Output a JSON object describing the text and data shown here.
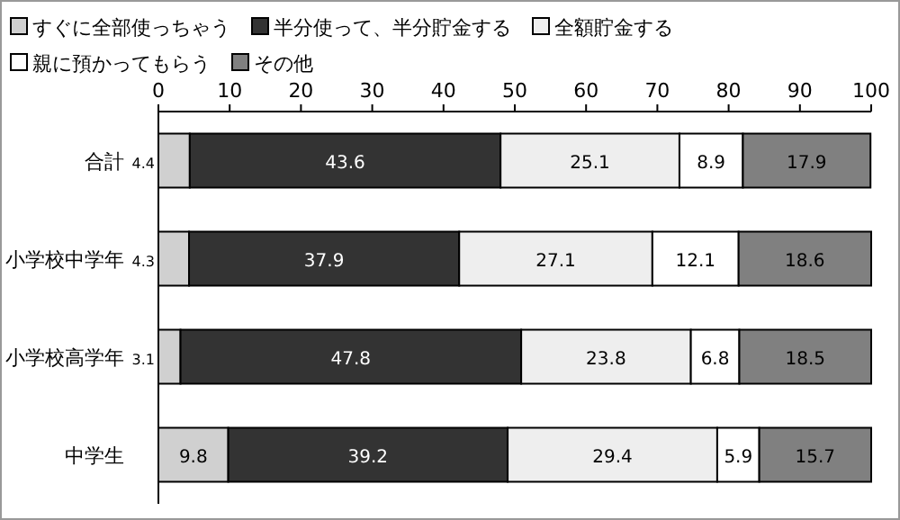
{
  "chart_data": {
    "type": "bar",
    "orientation": "horizontal",
    "stacked": true,
    "data_labels": true,
    "legend": "top",
    "grid": false,
    "categories": [
      "合計",
      "小学校中学年",
      "小学校高学年",
      "中学生"
    ],
    "series": [
      {
        "name": "すぐに全部使っちゃう",
        "color": "#d0d0d0",
        "values": [
          4.4,
          4.3,
          3.1,
          9.8
        ]
      },
      {
        "name": "半分使って、半分貯金する",
        "color": "#333333",
        "values": [
          43.6,
          37.9,
          47.8,
          39.2
        ]
      },
      {
        "name": "全額貯金する",
        "color": "#eeeeee",
        "values": [
          25.1,
          27.1,
          23.8,
          29.4
        ]
      },
      {
        "name": "親に預かってもらう",
        "color": "#ffffff",
        "values": [
          8.9,
          12.1,
          6.8,
          5.9
        ]
      },
      {
        "name": "その他",
        "color": "#808080",
        "values": [
          17.9,
          18.6,
          18.5,
          15.7
        ]
      }
    ],
    "xlim": [
      0,
      100
    ],
    "xticks": [
      0,
      10,
      20,
      30,
      40,
      50,
      60,
      70,
      80,
      90,
      100
    ]
  }
}
